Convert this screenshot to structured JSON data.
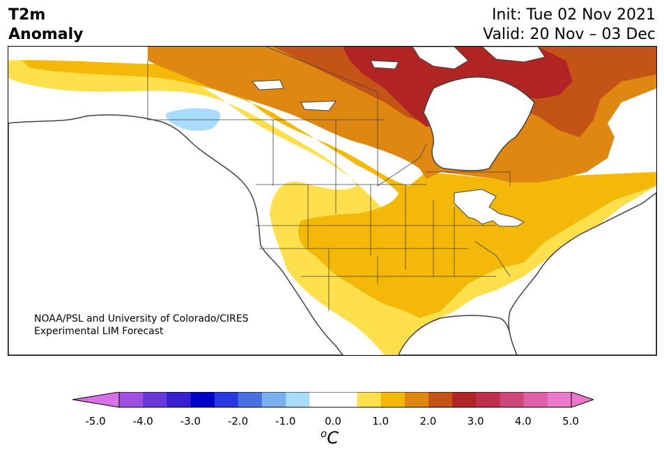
{
  "title": {
    "line1": "T2m",
    "line2": "Anomaly",
    "init": "Init: Tue 02 Nov 2021",
    "valid": "Valid: 20 Nov – 03 Dec"
  },
  "credit": {
    "line1": "NOAA/PSL and University of Colorado/CIRES",
    "line2": "Experimental LIM Forecast"
  },
  "colorbar": {
    "unit_sup": "o",
    "unit": "C",
    "ticks": [
      "-5.0",
      "-4.0",
      "-3.0",
      "-2.0",
      "-1.0",
      "0.0",
      "1.0",
      "2.0",
      "3.0",
      "4.0",
      "5.0"
    ],
    "levels": [
      -5.0,
      -4.5,
      -4.0,
      -3.5,
      -3.0,
      -2.5,
      -2.0,
      -1.5,
      -1.0,
      -0.5,
      0.5,
      1.0,
      1.5,
      2.0,
      2.5,
      3.0,
      3.5,
      4.0,
      4.5,
      5.0
    ],
    "colors": {
      "under": "#d870e8",
      "bins": [
        "#a050e0",
        "#6838d8",
        "#3820d0",
        "#0000c8",
        "#2838e0",
        "#4870e0",
        "#78b0f0",
        "#a8dcfc",
        "#ffffff",
        "#ffffff",
        "#ffe04c",
        "#f4b808",
        "#de8812",
        "#c45416",
        "#b02424",
        "#c0304c",
        "#cc4878",
        "#de60a8",
        "#ec78cc"
      ],
      "over": "#ec78cc"
    }
  },
  "map": {
    "anomaly_colors": {
      "ocean": "#ffffff",
      "cool_1": "#a8dcfc",
      "warm_0_5": "#ffe04c",
      "warm_1_0": "#f4b808",
      "warm_1_5": "#de8812",
      "warm_2_0": "#c45416",
      "warm_2_5": "#b02424",
      "warm_3_0": "#c0304c"
    },
    "border_color": "#404040"
  }
}
